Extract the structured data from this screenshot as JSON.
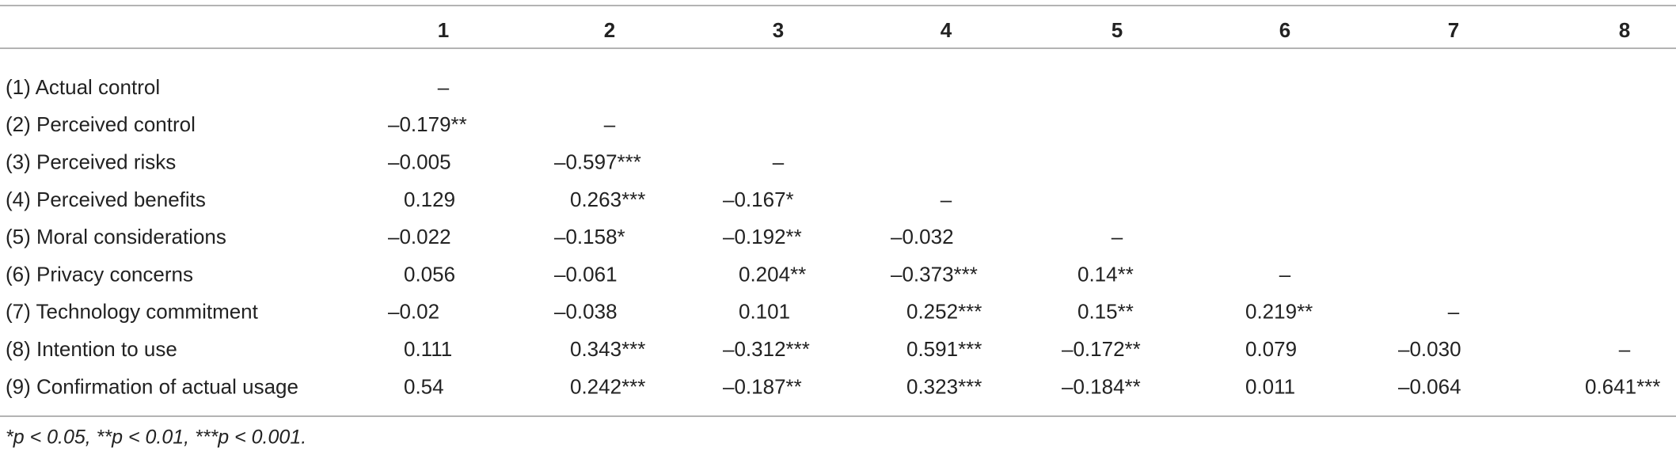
{
  "table": {
    "columns": [
      "1",
      "2",
      "3",
      "4",
      "5",
      "6",
      "7",
      "8"
    ],
    "rows": [
      {
        "label": "(1) Actual control",
        "cells": [
          "–"
        ]
      },
      {
        "label": "(2) Perceived control",
        "cells": [
          "–0.179**",
          "–"
        ]
      },
      {
        "label": "(3) Perceived risks",
        "cells": [
          "–0.005",
          "–0.597***",
          "–"
        ]
      },
      {
        "label": "(4) Perceived benefits",
        "cells": [
          "0.129",
          "0.263***",
          "–0.167*",
          "–"
        ]
      },
      {
        "label": "(5) Moral considerations",
        "cells": [
          "–0.022",
          "–0.158*",
          "–0.192**",
          "–0.032",
          "–"
        ]
      },
      {
        "label": "(6) Privacy concerns",
        "cells": [
          "0.056",
          "–0.061",
          "0.204**",
          "–0.373***",
          "0.14**",
          "–"
        ]
      },
      {
        "label": "(7) Technology commitment",
        "cells": [
          "–0.02",
          "–0.038",
          "0.101",
          "0.252***",
          "0.15**",
          "0.219**",
          "–"
        ]
      },
      {
        "label": "(8) Intention to use",
        "cells": [
          "0.111",
          "0.343***",
          "–0.312***",
          "0.591***",
          "–0.172**",
          "0.079",
          "–0.030",
          "–"
        ]
      },
      {
        "label": "(9) Confirmation of actual usage",
        "cells": [
          "0.54",
          "0.242***",
          "–0.187**",
          "0.323***",
          "–0.184**",
          "0.011",
          "–0.064",
          "0.641***"
        ]
      }
    ],
    "footnote": "*p < 0.05, **p < 0.01, ***p < 0.001."
  }
}
